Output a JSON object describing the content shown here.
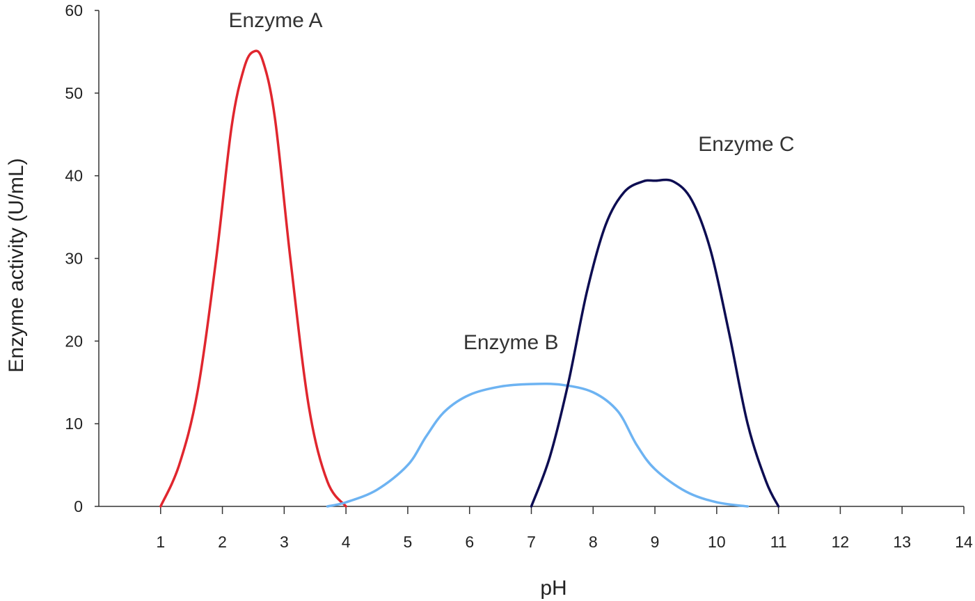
{
  "chart_data": {
    "type": "line",
    "title": "",
    "xlabel": "pH",
    "ylabel": "Enzyme activity (U/mL)",
    "xlim": [
      0,
      14
    ],
    "ylim": [
      0,
      60
    ],
    "x_ticks": [
      1,
      2,
      3,
      4,
      5,
      6,
      7,
      8,
      9,
      10,
      11,
      12,
      13,
      14
    ],
    "y_ticks": [
      0,
      10,
      20,
      30,
      40,
      50,
      60
    ],
    "grid": false,
    "legend": "none",
    "series": [
      {
        "name": "Enzyme A",
        "color": "#e0262e",
        "label_at": [
          2.1,
          58
        ],
        "x": [
          1.0,
          1.3,
          1.6,
          1.9,
          2.15,
          2.35,
          2.5,
          2.65,
          2.85,
          3.1,
          3.4,
          3.7,
          4.0
        ],
        "y": [
          0,
          5,
          14,
          30,
          46,
          53,
          55,
          54,
          47,
          30,
          12,
          3,
          0
        ]
      },
      {
        "name": "Enzyme B",
        "color": "#6db3f2",
        "label_at": [
          5.9,
          19
        ],
        "x": [
          3.7,
          4.0,
          4.5,
          5.0,
          5.3,
          5.6,
          6.0,
          6.5,
          7.0,
          7.5,
          8.0,
          8.4,
          8.7,
          9.0,
          9.5,
          10.0,
          10.5
        ],
        "y": [
          0,
          0.5,
          2,
          5,
          8.5,
          11.5,
          13.5,
          14.5,
          14.8,
          14.7,
          13.8,
          11.5,
          7.5,
          4.5,
          1.8,
          0.5,
          0
        ]
      },
      {
        "name": "Enzyme C",
        "color": "#0d0d52",
        "label_at": [
          9.7,
          43
        ],
        "x": [
          7.0,
          7.3,
          7.6,
          7.9,
          8.2,
          8.5,
          8.8,
          9.0,
          9.3,
          9.6,
          9.9,
          10.2,
          10.5,
          10.8,
          11.0
        ],
        "y": [
          0,
          6,
          15,
          26,
          34,
          38,
          39.3,
          39.4,
          39.3,
          37,
          31,
          21,
          10,
          3,
          0
        ]
      }
    ]
  }
}
